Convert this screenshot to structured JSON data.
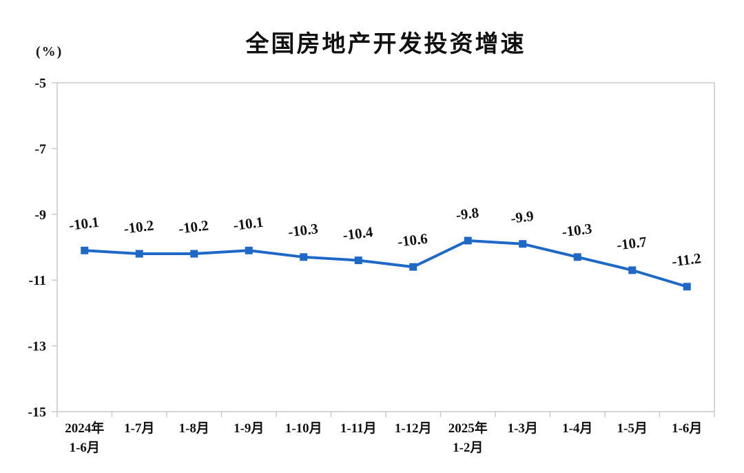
{
  "header": {
    "title": "全国房地产开发投资增速",
    "unit_label": "(%)"
  },
  "chart_data": {
    "type": "line",
    "title": "全国房地产开发投资增速",
    "ylabel": "(%)",
    "xlabel": "",
    "categories": [
      [
        "2024年",
        "1-6月"
      ],
      [
        "1-7月"
      ],
      [
        "1-8月"
      ],
      [
        "1-9月"
      ],
      [
        "1-10月"
      ],
      [
        "1-11月"
      ],
      [
        "1-12月"
      ],
      [
        "2025年",
        "1-2月"
      ],
      [
        "1-3月"
      ],
      [
        "1-4月"
      ],
      [
        "1-5月"
      ],
      [
        "1-6月"
      ]
    ],
    "series": [
      {
        "name": "全国房地产开发投资增速",
        "values": [
          -10.1,
          -10.2,
          -10.2,
          -10.1,
          -10.3,
          -10.4,
          -10.6,
          -9.8,
          -9.9,
          -10.3,
          -10.7,
          -11.2
        ]
      }
    ],
    "data_labels": [
      "-10.1",
      "-10.2",
      "-10.2",
      "-10.1",
      "-10.3",
      "-10.4",
      "-10.6",
      "-9.8",
      "-9.9",
      "-10.3",
      "-10.7",
      "-11.2"
    ],
    "ylim": [
      -15,
      -5
    ],
    "yticks": [
      -5,
      -7,
      -9,
      -11,
      -13,
      -15
    ],
    "grid": false,
    "legend_position": "none",
    "line_color": "#1e68c8",
    "marker_shape": "square",
    "axis_color": "#c8c8c8",
    "text_color": "#111111"
  }
}
